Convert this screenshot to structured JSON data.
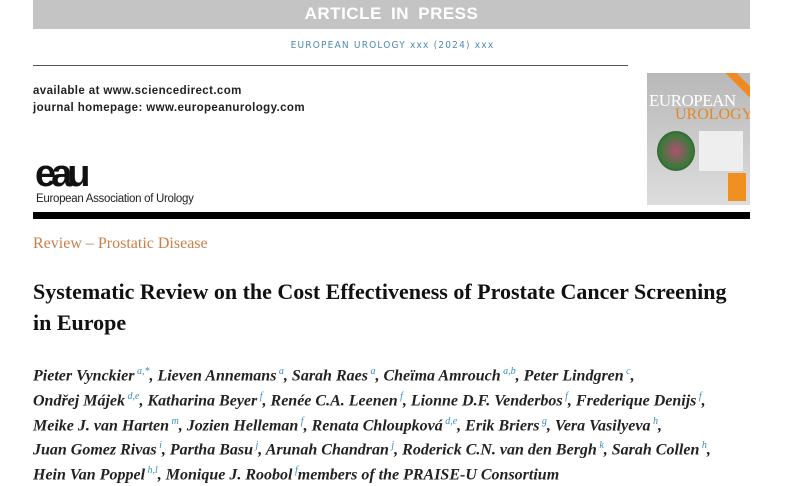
{
  "header": {
    "banner": "ARTICLE IN PRESS",
    "journal_line": "EUROPEAN UROLOGY xxx (2024) xxx",
    "available": "available at www.sciencedirect.com",
    "homepage": "journal homepage: www.europeanurology.com"
  },
  "cover": {
    "title1": "EUROPEAN",
    "title2": "UROLOGY"
  },
  "logo": {
    "mark": "eau",
    "name": "European Association of Urology"
  },
  "section": "Review – Prostatic Disease",
  "title": "Systematic Review on the Cost Effectiveness of Prostate Cancer Screening in Europe",
  "author_lines": [
    [
      {
        "n": "Pieter Vynckier",
        "a": "a,*"
      },
      {
        "n": "Lieven Annemans",
        "a": "a"
      },
      {
        "n": "Sarah Raes",
        "a": "a"
      },
      {
        "n": "Cheïma Amrouch",
        "a": "a,b"
      },
      {
        "n": "Peter Lindgren",
        "a": "c"
      }
    ],
    [
      {
        "n": "Ondřej Májek",
        "a": "d,e"
      },
      {
        "n": "Katharina Beyer",
        "a": "f"
      },
      {
        "n": "Renée C.A. Leenen",
        "a": "f"
      },
      {
        "n": "Lionne D.F. Venderbos",
        "a": "f"
      },
      {
        "n": "Frederique Denijs",
        "a": "f"
      }
    ],
    [
      {
        "n": "Meike J. van Harten",
        "a": "m"
      },
      {
        "n": "Jozien Helleman",
        "a": "f"
      },
      {
        "n": "Renata Chloupková",
        "a": "d,e"
      },
      {
        "n": "Erik Briers",
        "a": "g"
      },
      {
        "n": "Vera Vasilyeva",
        "a": "h"
      }
    ],
    [
      {
        "n": "Juan Gomez Rivas",
        "a": "i"
      },
      {
        "n": "Partha Basu",
        "a": "j"
      },
      {
        "n": "Arunah Chandran",
        "a": "j"
      },
      {
        "n": "Roderick C.N. van den Bergh",
        "a": "k"
      },
      {
        "n": "Sarah Collen",
        "a": "h"
      }
    ],
    [
      {
        "n": "Hein Van Poppel",
        "a": "h,l"
      },
      {
        "n": "Monique J. Roobol",
        "a": "f"
      }
    ]
  ],
  "consortium": "members of the PRAISE-U Consortium",
  "colors": {
    "accent": "#c8804a",
    "link": "#3a8fc2",
    "banner": "#c4c4c4"
  }
}
